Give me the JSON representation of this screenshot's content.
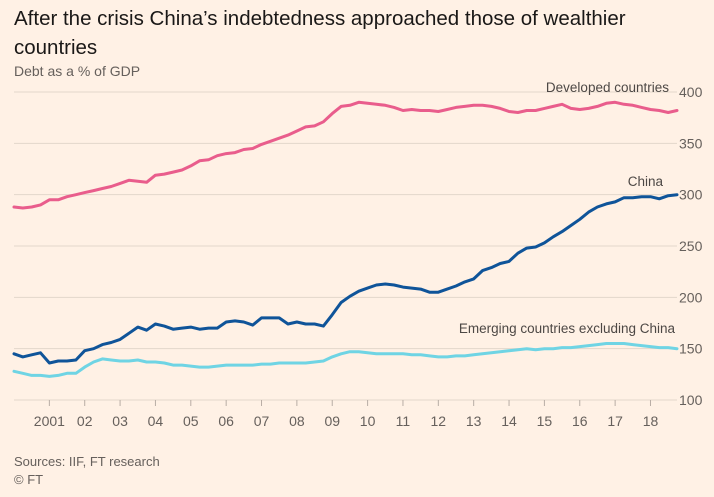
{
  "title": "After the crisis China’s indebtedness approached those of wealthier countries",
  "subtitle": "Debt as a % of GDP",
  "source": "Sources: IIF, FT research",
  "credit": "© FT",
  "chart_data": {
    "type": "line",
    "title": "After the crisis China’s indebtedness approached those of wealthier countries",
    "subtitle": "Debt as a % of GDP",
    "xlabel": "",
    "ylabel": "",
    "xlim": [
      2000.0,
      2018.75
    ],
    "ylim": [
      100,
      400
    ],
    "yticks": [
      100,
      150,
      200,
      250,
      300,
      350,
      400
    ],
    "yaxis_position": "right",
    "grid": true,
    "legend": "direct labels at line ends",
    "xticks": [
      {
        "x": 2001,
        "label": "2001"
      },
      {
        "x": 2002,
        "label": "02"
      },
      {
        "x": 2003,
        "label": "03"
      },
      {
        "x": 2004,
        "label": "04"
      },
      {
        "x": 2005,
        "label": "05"
      },
      {
        "x": 2006,
        "label": "06"
      },
      {
        "x": 2007,
        "label": "07"
      },
      {
        "x": 2008,
        "label": "08"
      },
      {
        "x": 2009,
        "label": "09"
      },
      {
        "x": 2010,
        "label": "10"
      },
      {
        "x": 2011,
        "label": "11"
      },
      {
        "x": 2012,
        "label": "12"
      },
      {
        "x": 2013,
        "label": "13"
      },
      {
        "x": 2014,
        "label": "14"
      },
      {
        "x": 2015,
        "label": "15"
      },
      {
        "x": 2016,
        "label": "16"
      },
      {
        "x": 2017,
        "label": "17"
      },
      {
        "x": 2018,
        "label": "18"
      }
    ],
    "series": [
      {
        "name": "Developed countries",
        "color": "#e95d8c",
        "x": [
          2000.0,
          2000.25,
          2000.5,
          2000.75,
          2001.0,
          2001.25,
          2001.5,
          2001.75,
          2002.0,
          2002.25,
          2002.5,
          2002.75,
          2003.0,
          2003.25,
          2003.5,
          2003.75,
          2004.0,
          2004.25,
          2004.5,
          2004.75,
          2005.0,
          2005.25,
          2005.5,
          2005.75,
          2006.0,
          2006.25,
          2006.5,
          2006.75,
          2007.0,
          2007.25,
          2007.5,
          2007.75,
          2008.0,
          2008.25,
          2008.5,
          2008.75,
          2009.0,
          2009.25,
          2009.5,
          2009.75,
          2010.0,
          2010.25,
          2010.5,
          2010.75,
          2011.0,
          2011.25,
          2011.5,
          2011.75,
          2012.0,
          2012.25,
          2012.5,
          2012.75,
          2013.0,
          2013.25,
          2013.5,
          2013.75,
          2014.0,
          2014.25,
          2014.5,
          2014.75,
          2015.0,
          2015.25,
          2015.5,
          2015.75,
          2016.0,
          2016.25,
          2016.5,
          2016.75,
          2017.0,
          2017.25,
          2017.5,
          2017.75,
          2018.0,
          2018.25,
          2018.5,
          2018.75
        ],
        "values": [
          288,
          287,
          288,
          290,
          295,
          295,
          298,
          300,
          302,
          304,
          306,
          308,
          311,
          314,
          313,
          312,
          319,
          320,
          322,
          324,
          328,
          333,
          334,
          338,
          340,
          341,
          344,
          345,
          349,
          352,
          355,
          358,
          362,
          366,
          367,
          371,
          379,
          386,
          387,
          390,
          389,
          388,
          387,
          385,
          382,
          383,
          382,
          382,
          381,
          383,
          385,
          386,
          387,
          387,
          386,
          384,
          381,
          380,
          382,
          382,
          384,
          386,
          388,
          384,
          383,
          384,
          386,
          389,
          390,
          388,
          387,
          385,
          383,
          382,
          380,
          382
        ]
      },
      {
        "name": "China",
        "color": "#0f5499",
        "x": [
          2000.0,
          2000.25,
          2000.5,
          2000.75,
          2001.0,
          2001.25,
          2001.5,
          2001.75,
          2002.0,
          2002.25,
          2002.5,
          2002.75,
          2003.0,
          2003.25,
          2003.5,
          2003.75,
          2004.0,
          2004.25,
          2004.5,
          2004.75,
          2005.0,
          2005.25,
          2005.5,
          2005.75,
          2006.0,
          2006.25,
          2006.5,
          2006.75,
          2007.0,
          2007.25,
          2007.5,
          2007.75,
          2008.0,
          2008.25,
          2008.5,
          2008.75,
          2009.0,
          2009.25,
          2009.5,
          2009.75,
          2010.0,
          2010.25,
          2010.5,
          2010.75,
          2011.0,
          2011.25,
          2011.5,
          2011.75,
          2012.0,
          2012.25,
          2012.5,
          2012.75,
          2013.0,
          2013.25,
          2013.5,
          2013.75,
          2014.0,
          2014.25,
          2014.5,
          2014.75,
          2015.0,
          2015.25,
          2015.5,
          2015.75,
          2016.0,
          2016.25,
          2016.5,
          2016.75,
          2017.0,
          2017.25,
          2017.5,
          2017.75,
          2018.0,
          2018.25,
          2018.5,
          2018.75
        ],
        "values": [
          145,
          142,
          144,
          146,
          136,
          138,
          138,
          139,
          148,
          150,
          154,
          156,
          159,
          165,
          171,
          168,
          174,
          172,
          169,
          170,
          171,
          169,
          170,
          170,
          176,
          177,
          176,
          173,
          180,
          180,
          180,
          174,
          176,
          174,
          174,
          172,
          183,
          195,
          201,
          206,
          209,
          212,
          213,
          212,
          210,
          209,
          208,
          205,
          205,
          208,
          211,
          215,
          218,
          226,
          229,
          233,
          235,
          243,
          248,
          249,
          253,
          259,
          264,
          270,
          276,
          283,
          288,
          291,
          293,
          297,
          297,
          298,
          298,
          296,
          299,
          300
        ]
      },
      {
        "name": "Emerging countries excluding China",
        "color": "#6fd4e4",
        "x": [
          2000.0,
          2000.25,
          2000.5,
          2000.75,
          2001.0,
          2001.25,
          2001.5,
          2001.75,
          2002.0,
          2002.25,
          2002.5,
          2002.75,
          2003.0,
          2003.25,
          2003.5,
          2003.75,
          2004.0,
          2004.25,
          2004.5,
          2004.75,
          2005.0,
          2005.25,
          2005.5,
          2005.75,
          2006.0,
          2006.25,
          2006.5,
          2006.75,
          2007.0,
          2007.25,
          2007.5,
          2007.75,
          2008.0,
          2008.25,
          2008.5,
          2008.75,
          2009.0,
          2009.25,
          2009.5,
          2009.75,
          2010.0,
          2010.25,
          2010.5,
          2010.75,
          2011.0,
          2011.25,
          2011.5,
          2011.75,
          2012.0,
          2012.25,
          2012.5,
          2012.75,
          2013.0,
          2013.25,
          2013.5,
          2013.75,
          2014.0,
          2014.25,
          2014.5,
          2014.75,
          2015.0,
          2015.25,
          2015.5,
          2015.75,
          2016.0,
          2016.25,
          2016.5,
          2016.75,
          2017.0,
          2017.25,
          2017.5,
          2017.75,
          2018.0,
          2018.25,
          2018.5,
          2018.75
        ],
        "values": [
          128,
          126,
          124,
          124,
          123,
          124,
          126,
          126,
          132,
          137,
          140,
          139,
          138,
          138,
          139,
          137,
          137,
          136,
          134,
          134,
          133,
          132,
          132,
          133,
          134,
          134,
          134,
          134,
          135,
          135,
          136,
          136,
          136,
          136,
          137,
          138,
          142,
          145,
          147,
          147,
          146,
          145,
          145,
          145,
          145,
          144,
          144,
          143,
          142,
          142,
          143,
          143,
          144,
          145,
          146,
          147,
          148,
          149,
          150,
          149,
          150,
          150,
          151,
          151,
          152,
          153,
          154,
          155,
          155,
          155,
          154,
          153,
          152,
          151,
          151,
          150
        ]
      }
    ]
  }
}
